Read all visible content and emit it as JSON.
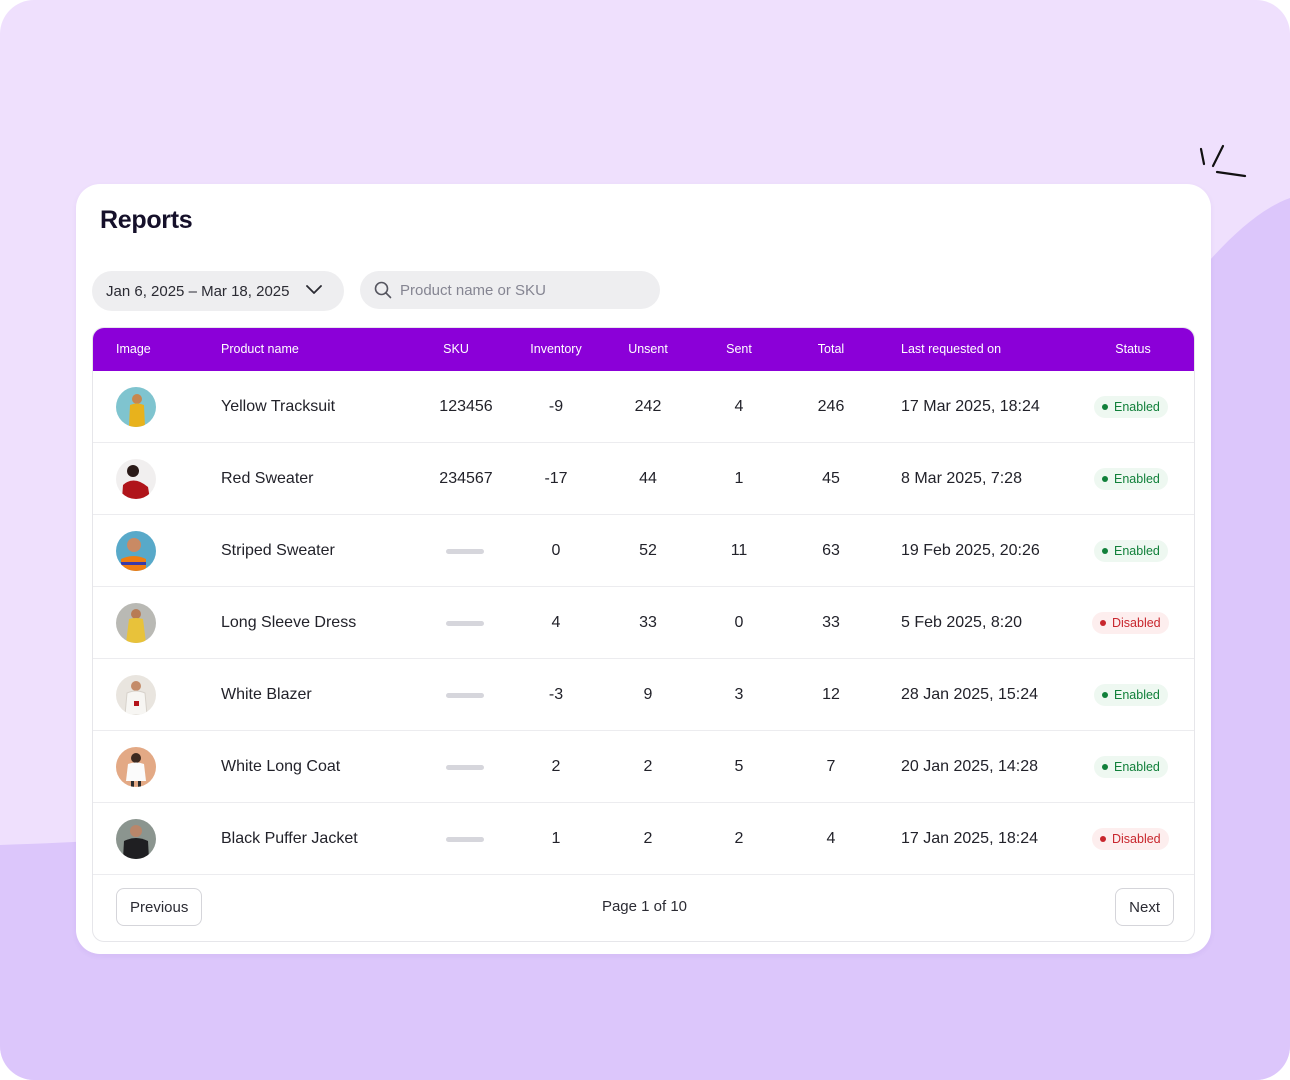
{
  "page": {
    "title": "Reports",
    "date_range": "Jan 6, 2025 – Mar 18, 2025",
    "search_placeholder": "Product name or SKU",
    "search_value": ""
  },
  "colors": {
    "header_bg": "#8b00d8",
    "enabled": "#11803a",
    "disabled": "#c8262d",
    "background": "#efe0fd"
  },
  "icons": {
    "date_dropdown": "chevron-down-icon",
    "search": "search-icon"
  },
  "table": {
    "columns": [
      "Image",
      "Product name",
      "SKU",
      "Inventory",
      "Unsent",
      "Sent",
      "Total",
      "Last requested on",
      "Status"
    ],
    "rows": [
      {
        "name": "Yellow Tracksuit",
        "sku": "123456",
        "inventory": "-9",
        "unsent": "242",
        "sent": "4",
        "total": "246",
        "last": "17 Mar 2025, 18:24",
        "status": "Enabled"
      },
      {
        "name": "Red Sweater",
        "sku": "234567",
        "inventory": "-17",
        "unsent": "44",
        "sent": "1",
        "total": "45",
        "last": "8 Mar 2025, 7:28",
        "status": "Enabled"
      },
      {
        "name": "Striped Sweater",
        "sku": "",
        "inventory": "0",
        "unsent": "52",
        "sent": "11",
        "total": "63",
        "last": "19 Feb 2025, 20:26",
        "status": "Enabled"
      },
      {
        "name": "Long Sleeve Dress",
        "sku": "",
        "inventory": "4",
        "unsent": "33",
        "sent": "0",
        "total": "33",
        "last": "5 Feb 2025, 8:20",
        "status": "Disabled"
      },
      {
        "name": "White Blazer",
        "sku": "",
        "inventory": "-3",
        "unsent": "9",
        "sent": "3",
        "total": "12",
        "last": "28 Jan 2025, 15:24",
        "status": "Enabled"
      },
      {
        "name": "White Long Coat",
        "sku": "",
        "inventory": "2",
        "unsent": "2",
        "sent": "5",
        "total": "7",
        "last": "20 Jan 2025, 14:28",
        "status": "Enabled"
      },
      {
        "name": "Black Puffer Jacket",
        "sku": "",
        "inventory": "1",
        "unsent": "2",
        "sent": "2",
        "total": "4",
        "last": "17 Jan 2025, 18:24",
        "status": "Disabled"
      }
    ]
  },
  "pagination": {
    "previous": "Previous",
    "next": "Next",
    "page_label": "Page 1 of 10"
  }
}
